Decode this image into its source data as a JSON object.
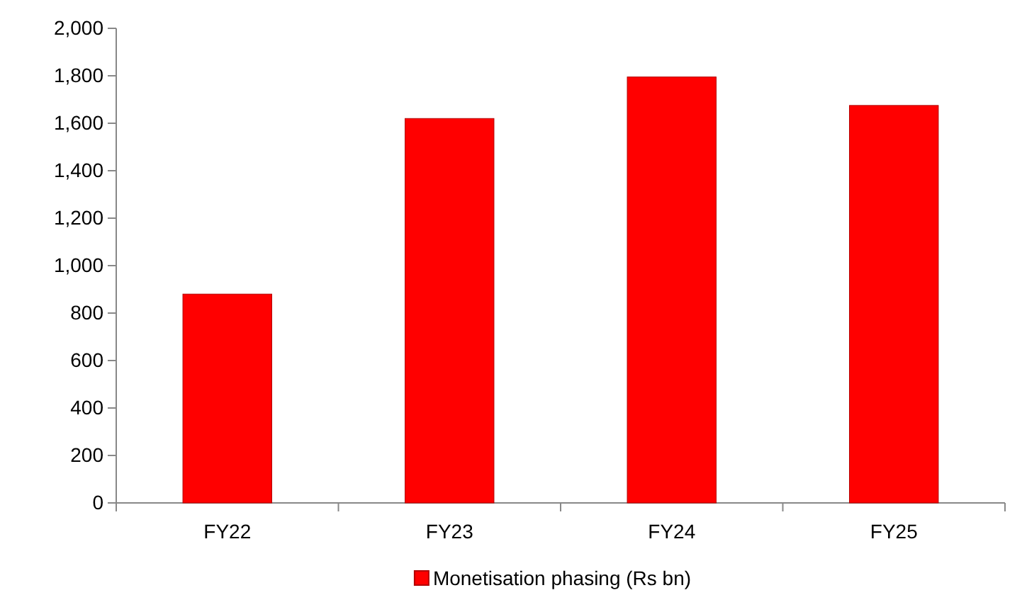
{
  "chart_data": {
    "type": "bar",
    "categories": [
      "FY22",
      "FY23",
      "FY24",
      "FY25"
    ],
    "series": [
      {
        "name": "Monetisation phasing (Rs bn)",
        "color": "#ff0000",
        "values": [
          880,
          1620,
          1795,
          1675
        ]
      }
    ],
    "ylim": [
      0,
      2000
    ],
    "yticks": [
      0,
      {
        "value": 200,
        "label": "200"
      },
      {
        "value": 400,
        "label": "400"
      },
      {
        "value": 600,
        "label": "600"
      },
      {
        "value": 800,
        "label": "800"
      },
      {
        "value": 1000,
        "label": "1,000"
      },
      {
        "value": 1200,
        "label": "1,200"
      },
      {
        "value": 1400,
        "label": "1,400"
      },
      {
        "value": 1600,
        "label": "1,600"
      },
      {
        "value": 1800,
        "label": "1,800"
      },
      {
        "value": 2000,
        "label": "2,000"
      }
    ],
    "grid": false,
    "legend": "bottom"
  }
}
